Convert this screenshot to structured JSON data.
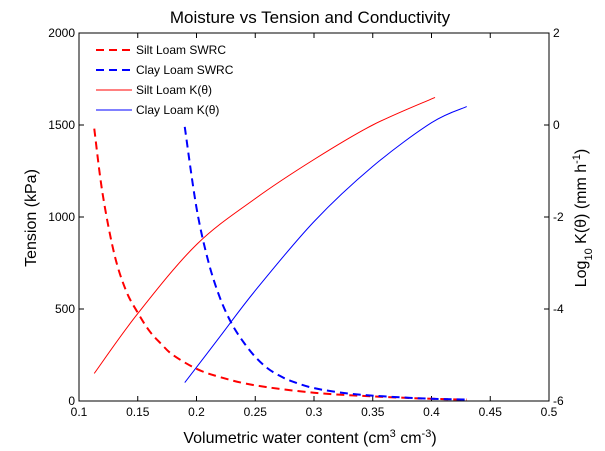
{
  "chart_data": {
    "type": "line",
    "title": "Moisture vs Tension and Conductivity",
    "xlabel": {
      "base": "Volumetric water content (cm",
      "sup1": "3",
      "mid": " cm",
      "sup2": "-3",
      "end": ")"
    },
    "ylabel_left": "Tension (kPa)",
    "ylabel_right": {
      "base": "Log",
      "sub": "10",
      "mid": " K(θ) (mm h",
      "sup": "-1",
      "end": ")"
    },
    "xlim": [
      0.1,
      0.5
    ],
    "ylim_left": [
      0,
      2000
    ],
    "ylim_right": [
      -6,
      2
    ],
    "x_ticks": [
      0.1,
      0.15,
      0.2,
      0.25,
      0.3,
      0.35,
      0.4,
      0.45,
      0.5
    ],
    "x_tick_labels": [
      "0.1",
      "0.15",
      "0.2",
      "0.25",
      "0.3",
      "0.35",
      "0.4",
      "0.45",
      "0.5"
    ],
    "y_left_ticks": [
      0,
      500,
      1000,
      1500,
      2000
    ],
    "y_left_tick_labels": [
      "0",
      "500",
      "1000",
      "1500",
      "2000"
    ],
    "y_right_ticks": [
      -6,
      -4,
      -2,
      0,
      2
    ],
    "y_right_tick_labels": [
      "-6",
      "-4",
      "-2",
      "0",
      "2"
    ],
    "grid": false,
    "legend_position": "top-left",
    "series": [
      {
        "name": "Silt Loam SWRC",
        "axis": "left",
        "color": "#ff0000",
        "style": "dashed",
        "x": [
          0.113,
          0.12,
          0.13,
          0.14,
          0.15,
          0.16,
          0.17,
          0.18,
          0.2,
          0.22,
          0.25,
          0.3,
          0.35,
          0.4,
          0.43
        ],
        "y": [
          1480,
          1130,
          800,
          600,
          480,
          380,
          310,
          250,
          175,
          130,
          85,
          45,
          25,
          12,
          8
        ]
      },
      {
        "name": "Clay Loam SWRC",
        "axis": "left",
        "color": "#0000ff",
        "style": "dashed",
        "x": [
          0.19,
          0.2,
          0.21,
          0.22,
          0.23,
          0.24,
          0.25,
          0.26,
          0.27,
          0.28,
          0.3,
          0.33,
          0.36,
          0.4,
          0.43
        ],
        "y": [
          1490,
          1050,
          760,
          560,
          420,
          320,
          240,
          180,
          140,
          110,
          70,
          40,
          25,
          12,
          8
        ]
      },
      {
        "name": "Silt Loam K(θ)",
        "axis": "right",
        "color": "#ff0000",
        "style": "solid",
        "x": [
          0.113,
          0.15,
          0.2,
          0.25,
          0.3,
          0.35,
          0.403
        ],
        "y": [
          -5.4,
          -4.1,
          -2.6,
          -1.6,
          -0.75,
          0.0,
          0.6
        ]
      },
      {
        "name": "Clay Loam K(θ)",
        "axis": "right",
        "color": "#0000ff",
        "style": "solid",
        "x": [
          0.19,
          0.22,
          0.25,
          0.3,
          0.35,
          0.4,
          0.43
        ],
        "y": [
          -5.6,
          -4.6,
          -3.6,
          -2.1,
          -0.9,
          0.05,
          0.4
        ]
      }
    ]
  }
}
